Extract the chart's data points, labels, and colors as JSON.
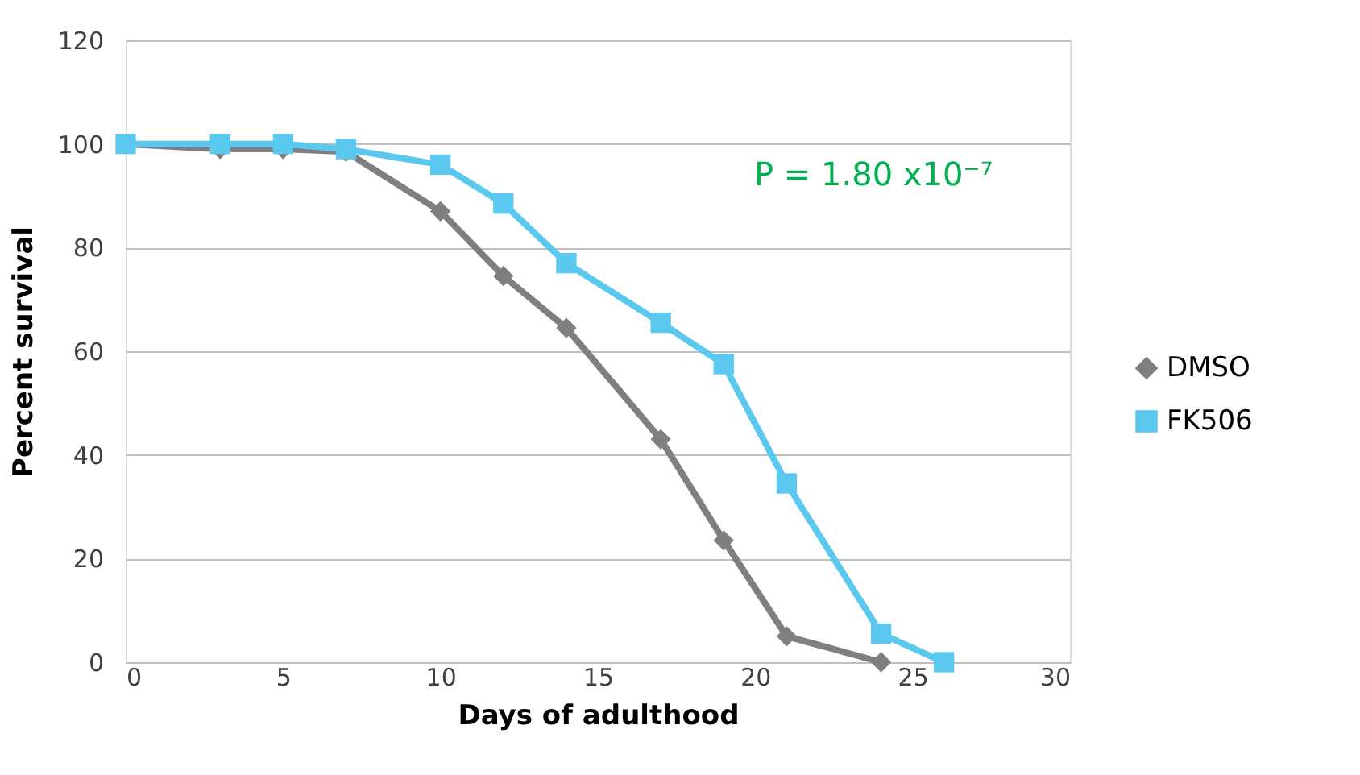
{
  "chart_data": {
    "type": "line",
    "xlabel": "Days of adulthood",
    "ylabel": "Percent survival",
    "xlim": [
      0,
      30
    ],
    "xticks": [
      0,
      5,
      10,
      15,
      20,
      25,
      30
    ],
    "ylim": [
      0,
      120
    ],
    "yticks": [
      0,
      20,
      40,
      60,
      80,
      100,
      120
    ],
    "grid": "y",
    "legend": "right",
    "line_style": "solid",
    "annotations": [
      "P = 1.80 x10⁻⁷"
    ],
    "series": [
      {
        "name": "DMSO",
        "color": "#7f7f7f",
        "marker": "diamond",
        "x": [
          0,
          3,
          5,
          7,
          10,
          12,
          14,
          17,
          19,
          21,
          24
        ],
        "values": [
          100,
          99,
          99,
          98.5,
          87,
          74.5,
          64.5,
          43,
          23.5,
          5,
          0
        ]
      },
      {
        "name": "FK506",
        "color": "#5bc8f0",
        "marker": "square",
        "x": [
          0,
          3,
          5,
          7,
          10,
          12,
          14,
          17,
          19,
          21,
          24,
          26
        ],
        "values": [
          100,
          100,
          100,
          99,
          96,
          88.5,
          77,
          65.5,
          57.5,
          34.5,
          5.5,
          0
        ]
      }
    ]
  }
}
